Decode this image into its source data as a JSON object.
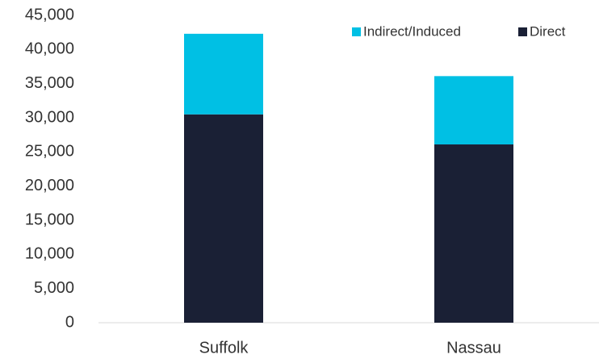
{
  "chart_data": {
    "type": "stacked_bar",
    "categories": [
      "Suffolk",
      "Nassau"
    ],
    "series": [
      {
        "name": "Direct",
        "color": "#1a2035",
        "values": [
          30500,
          26100
        ]
      },
      {
        "name": "Indirect/Induced",
        "color": "#00c0e4",
        "values": [
          11800,
          10000
        ]
      }
    ],
    "ylim": [
      0,
      45000
    ],
    "yticks": [
      0,
      {
        "value": 5000,
        "label": "5,000"
      },
      {
        "value": 10000,
        "label": "10,000"
      },
      {
        "value": 15000,
        "label": "15,000"
      },
      {
        "value": 20000,
        "label": "20,000"
      },
      {
        "value": 25000,
        "label": "25,000"
      },
      {
        "value": 30000,
        "label": "30,000"
      },
      {
        "value": 35000,
        "label": "35,000"
      },
      {
        "value": 40000,
        "label": "40,000"
      },
      {
        "value": 45000,
        "label": "45,000"
      }
    ],
    "legend": "top-right"
  }
}
